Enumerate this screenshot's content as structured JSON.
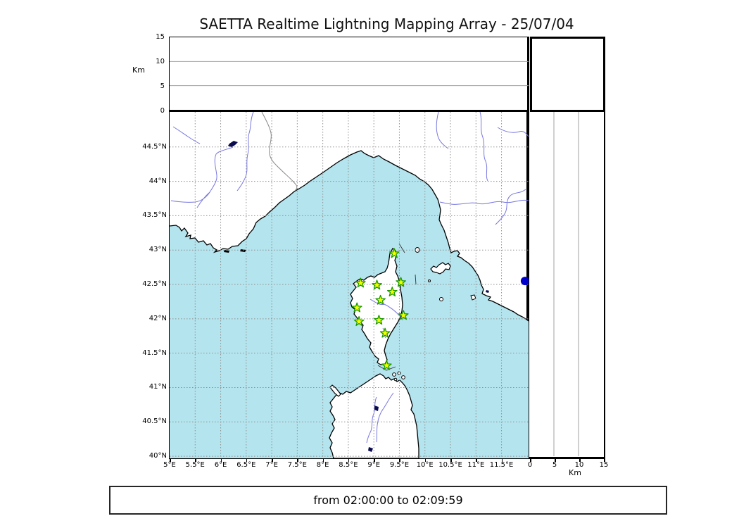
{
  "title": "SAETTA Realtime Lightning Mapping Array - 25/07/04",
  "status": {
    "text": "from 02:00:00 to 02:09:59"
  },
  "axes": {
    "altitude_left": {
      "label": "Km",
      "ticks": [
        15,
        10,
        5,
        0
      ],
      "max": 15
    },
    "altitude_bottom": {
      "label": "Km",
      "ticks": [
        0,
        5,
        10,
        15
      ],
      "max": 15
    },
    "longitude": {
      "ticks": [
        5,
        5.5,
        6,
        6.5,
        7,
        7.5,
        8,
        8.5,
        9,
        9.5,
        10,
        10.5,
        11,
        11.5
      ],
      "labels": [
        "5°E",
        "5.5°E",
        "6°E",
        "6.5°E",
        "7°E",
        "7.5°E",
        "8°E",
        "8.5°E",
        "9°E",
        "9.5°E",
        "10°E",
        "10.5°E",
        "11°E",
        "11.5°E"
      ]
    },
    "latitude": {
      "ticks": [
        44.5,
        44,
        43.5,
        43,
        42.5,
        42,
        41.5,
        41,
        40.5,
        40
      ],
      "labels": [
        "44.5°N",
        "44°N",
        "43.5°N",
        "43°N",
        "42.5°N",
        "42°N",
        "41.5°N",
        "41°N",
        "40.5°N",
        "40°N"
      ]
    }
  },
  "map": {
    "lon_min": 5.0,
    "lon_max": 12.03,
    "lat_min": 39.97,
    "lat_max": 45.01,
    "stations": [
      {
        "lon": 9.4,
        "lat": 42.95
      },
      {
        "lon": 8.74,
        "lat": 42.52
      },
      {
        "lon": 9.06,
        "lat": 42.49
      },
      {
        "lon": 9.53,
        "lat": 42.53
      },
      {
        "lon": 9.36,
        "lat": 42.39
      },
      {
        "lon": 9.13,
        "lat": 42.27
      },
      {
        "lon": 8.67,
        "lat": 42.16
      },
      {
        "lon": 8.71,
        "lat": 41.96
      },
      {
        "lon": 9.1,
        "lat": 41.98
      },
      {
        "lon": 9.22,
        "lat": 41.79
      },
      {
        "lon": 9.58,
        "lat": 42.05
      },
      {
        "lon": 9.25,
        "lat": 41.32
      }
    ],
    "source_dot": {
      "lon": 11.96,
      "lat": 42.55,
      "radius": 6,
      "color": "#0000cc"
    },
    "colors": {
      "sea": "#b4e4ee",
      "land": "#ffffff",
      "coast": "#000000",
      "river": "#7777e0",
      "country_border": "#888888",
      "grid": "#909090",
      "panel_grid": "#a0a0a0",
      "lake": "#0a0a50",
      "station_fill": "#f5ff00",
      "station_stroke": "#1a9900"
    }
  }
}
